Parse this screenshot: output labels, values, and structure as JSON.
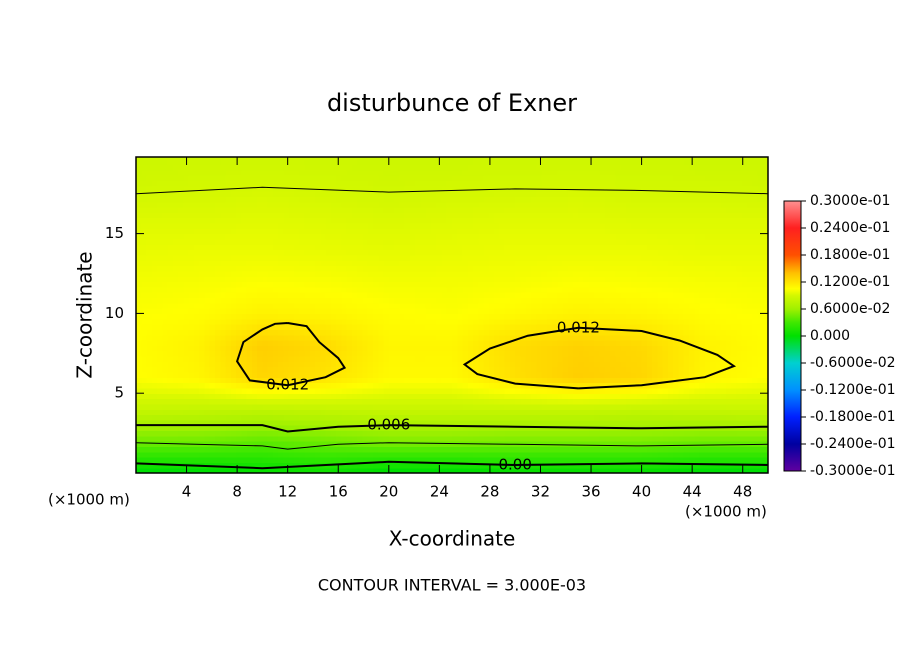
{
  "chart_data": {
    "type": "contour",
    "title": "disturbunce of Exner",
    "xlabel": "X-coordinate",
    "ylabel": "Z-coordinate",
    "x_unit_labels": [
      "(×1000 m)",
      "(×1000 m)"
    ],
    "footer": "CONTOUR INTERVAL = 3.000E-03",
    "xlim": [
      0,
      50
    ],
    "ylim": [
      0,
      19.8
    ],
    "xticks": [
      4,
      8,
      12,
      16,
      20,
      24,
      28,
      32,
      36,
      40,
      44,
      48
    ],
    "yticks": [
      5,
      10,
      15
    ],
    "x_grid": [
      0,
      5,
      10,
      15,
      20,
      25,
      30,
      35,
      40,
      45,
      50
    ],
    "y_grid": [
      0,
      2,
      4,
      6,
      8,
      10,
      12,
      14,
      16,
      18,
      20
    ],
    "z": [
      [
        -0.0005,
        -0.0005,
        0.0,
        0.0005,
        -0.0005,
        -0.0005,
        0.0,
        0.0,
        0.0,
        -0.0005,
        -0.0005
      ],
      [
        0.0045,
        0.0045,
        0.004,
        0.0045,
        0.005,
        0.005,
        0.0048,
        0.0048,
        0.0048,
        0.0045,
        0.0045
      ],
      [
        0.0082,
        0.008,
        0.0078,
        0.008,
        0.0082,
        0.0082,
        0.0082,
        0.0082,
        0.008,
        0.0082,
        0.0083
      ],
      [
        0.0105,
        0.011,
        0.0128,
        0.012,
        0.0108,
        0.0108,
        0.0122,
        0.0132,
        0.0128,
        0.011,
        0.0105
      ],
      [
        0.0106,
        0.0112,
        0.0132,
        0.0125,
        0.011,
        0.011,
        0.0124,
        0.013,
        0.0126,
        0.0112,
        0.0106
      ],
      [
        0.0104,
        0.0106,
        0.0112,
        0.011,
        0.0106,
        0.0104,
        0.0108,
        0.0112,
        0.011,
        0.0106,
        0.0104
      ],
      [
        0.0101,
        0.0102,
        0.0104,
        0.0103,
        0.0101,
        0.0101,
        0.0102,
        0.0104,
        0.0103,
        0.0102,
        0.0101
      ],
      [
        0.0097,
        0.0098,
        0.0098,
        0.0097,
        0.0096,
        0.0097,
        0.0098,
        0.0098,
        0.0098,
        0.0097,
        0.0097
      ],
      [
        0.0093,
        0.0093,
        0.0094,
        0.0093,
        0.0092,
        0.0093,
        0.0094,
        0.0094,
        0.0093,
        0.0093,
        0.0093
      ],
      [
        0.0088,
        0.0089,
        0.009,
        0.0089,
        0.0088,
        0.0089,
        0.0089,
        0.009,
        0.0089,
        0.0089,
        0.0088
      ],
      [
        0.0085,
        0.0086,
        0.0086,
        0.0086,
        0.0085,
        0.0085,
        0.0086,
        0.0086,
        0.0086,
        0.0085,
        0.0085
      ]
    ],
    "colorscale": {
      "values": [
        0.03,
        0.024,
        0.018,
        0.014,
        0.012,
        0.0105,
        0.009,
        0.006,
        0.003,
        0.0,
        -0.006,
        -0.012,
        -0.018,
        -0.024,
        -0.03
      ],
      "colors": [
        "#ff9090",
        "#ff2020",
        "#ff5000",
        "#ffc000",
        "#ffe400",
        "#ffff00",
        "#d4f800",
        "#a0f000",
        "#40e800",
        "#00e000",
        "#00d0d0",
        "#0090ff",
        "#0020ff",
        "#0000a0",
        "#6000a0"
      ]
    },
    "colorbar_ticks": [
      {
        "value": 0.03,
        "label": "0.3000e-01"
      },
      {
        "value": 0.024,
        "label": "0.2400e-01"
      },
      {
        "value": 0.018,
        "label": "0.1800e-01"
      },
      {
        "value": 0.012,
        "label": "0.1200e-01"
      },
      {
        "value": 0.006,
        "label": "0.6000e-02"
      },
      {
        "value": 0,
        "label": "0.000"
      },
      {
        "value": -0.006,
        "label": "-0.6000e-02"
      },
      {
        "value": -0.012,
        "label": "-0.1200e-01"
      },
      {
        "value": -0.018,
        "label": "-0.1800e-01"
      },
      {
        "value": -0.024,
        "label": "-0.2400e-01"
      },
      {
        "value": -0.03,
        "label": "-0.3000e-01"
      }
    ],
    "contours": [
      {
        "level": 0.009,
        "x": [
          0,
          10,
          20,
          30,
          40,
          50
        ],
        "y": [
          17.5,
          17.9,
          17.6,
          17.8,
          17.7,
          17.5
        ]
      },
      {
        "level": 0.012,
        "label": "0.012",
        "x": [
          12,
          13.5,
          14.5,
          16,
          16.5,
          15,
          12,
          9,
          8,
          8.5,
          10,
          11,
          12
        ],
        "y": [
          9.4,
          9.2,
          8.2,
          7.2,
          6.6,
          6,
          5.5,
          5.8,
          7,
          8.2,
          9,
          9.35,
          9.4
        ]
      },
      {
        "level": 0.012,
        "label": "0.012",
        "x": [
          35,
          40,
          45,
          47.3,
          46,
          43,
          40,
          35,
          31,
          28,
          26,
          27,
          30,
          35
        ],
        "y": [
          5.3,
          5.5,
          6,
          6.7,
          7.4,
          8.3,
          8.9,
          9.1,
          8.6,
          7.8,
          6.8,
          6.2,
          5.6,
          5.3
        ]
      },
      {
        "level": 0.006,
        "label": "0.006",
        "x": [
          0,
          10,
          12,
          16,
          20,
          30,
          40,
          50
        ],
        "y": [
          3.0,
          3.0,
          2.6,
          2.9,
          3.0,
          2.9,
          2.8,
          2.9
        ]
      },
      {
        "level": 0.003,
        "x": [
          0,
          10,
          12,
          16,
          20,
          30,
          40,
          50
        ],
        "y": [
          1.9,
          1.7,
          1.5,
          1.8,
          1.9,
          1.8,
          1.7,
          1.8
        ]
      },
      {
        "level": 0,
        "label": "0.00",
        "x": [
          0,
          10,
          20,
          30,
          40,
          50
        ],
        "y": [
          0.6,
          0.3,
          0.7,
          0.5,
          0.6,
          0.5
        ]
      }
    ]
  }
}
